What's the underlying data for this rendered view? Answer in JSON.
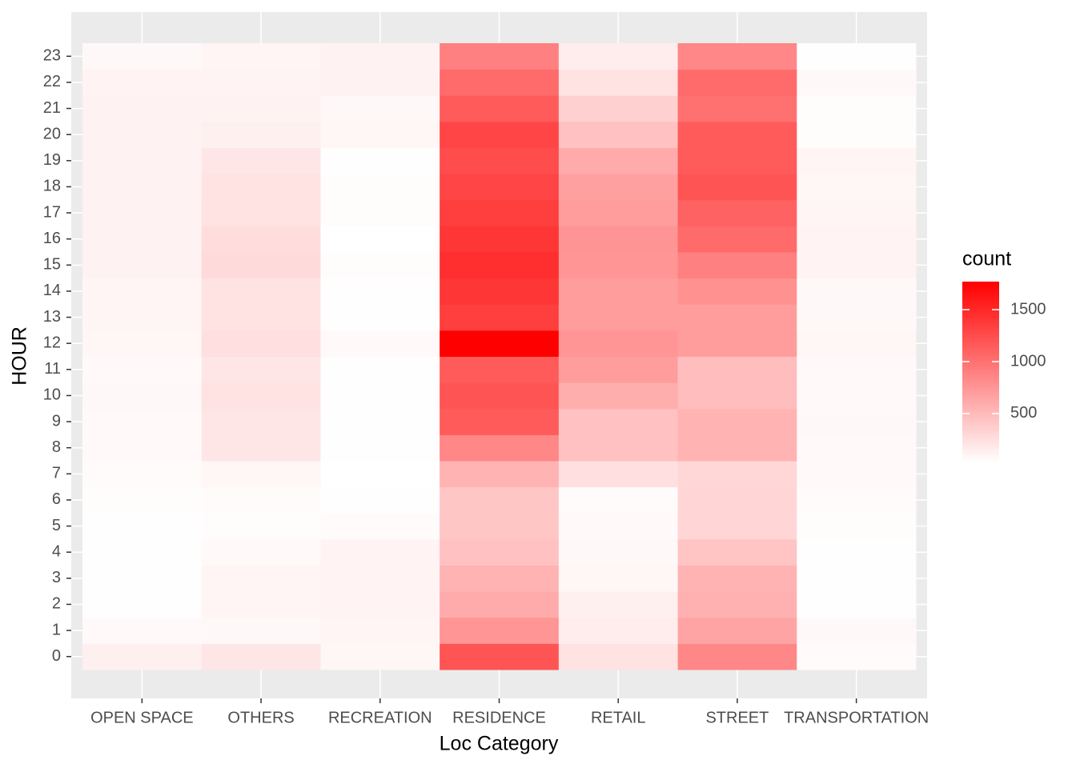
{
  "chart_data": {
    "type": "heatmap",
    "x_label": "Loc Category",
    "y_label": "HOUR",
    "categories": [
      "OPEN SPACE",
      "OTHERS",
      "RECREATION",
      "RESIDENCE",
      "RETAIL",
      "STREET",
      "TRANSPORTATION"
    ],
    "y_categories": [
      0,
      1,
      2,
      3,
      4,
      5,
      6,
      7,
      8,
      9,
      10,
      11,
      12,
      13,
      14,
      15,
      16,
      17,
      18,
      19,
      20,
      21,
      22,
      23
    ],
    "values": [
      [
        130,
        70,
        40,
        40,
        40,
        40,
        50,
        60,
        70,
        70,
        80,
        70,
        90,
        100,
        100,
        120,
        120,
        120,
        120,
        120,
        120,
        120,
        110,
        80
      ],
      [
        200,
        80,
        100,
        100,
        70,
        50,
        60,
        90,
        200,
        200,
        230,
        200,
        250,
        230,
        220,
        280,
        260,
        230,
        220,
        200,
        130,
        120,
        110,
        100
      ],
      [
        90,
        100,
        110,
        110,
        110,
        60,
        40,
        30,
        40,
        40,
        40,
        40,
        70,
        40,
        40,
        50,
        30,
        50,
        50,
        40,
        90,
        80,
        120,
        120
      ],
      [
        1200,
        750,
        600,
        550,
        450,
        420,
        420,
        550,
        850,
        1150,
        1200,
        1150,
        1770,
        1350,
        1400,
        1450,
        1400,
        1350,
        1300,
        1250,
        1300,
        1150,
        1050,
        900
      ],
      [
        230,
        150,
        130,
        90,
        80,
        70,
        60,
        250,
        450,
        450,
        580,
        700,
        750,
        700,
        700,
        750,
        760,
        700,
        680,
        600,
        450,
        350,
        220,
        150
      ],
      [
        850,
        650,
        570,
        550,
        430,
        320,
        320,
        300,
        550,
        550,
        480,
        480,
        700,
        700,
        780,
        900,
        1050,
        1100,
        1200,
        1150,
        1150,
        1000,
        1050,
        850
      ],
      [
        60,
        80,
        40,
        40,
        40,
        50,
        60,
        70,
        70,
        80,
        70,
        70,
        90,
        80,
        80,
        110,
        110,
        100,
        90,
        100,
        50,
        50,
        80,
        40
      ]
    ],
    "legend_title": "count",
    "fill_limits": [
      30,
      1770
    ],
    "legend_ticks": [
      500,
      1000,
      1500
    ],
    "low_color": "#FFFFFF",
    "high_color": "#FF0000"
  }
}
